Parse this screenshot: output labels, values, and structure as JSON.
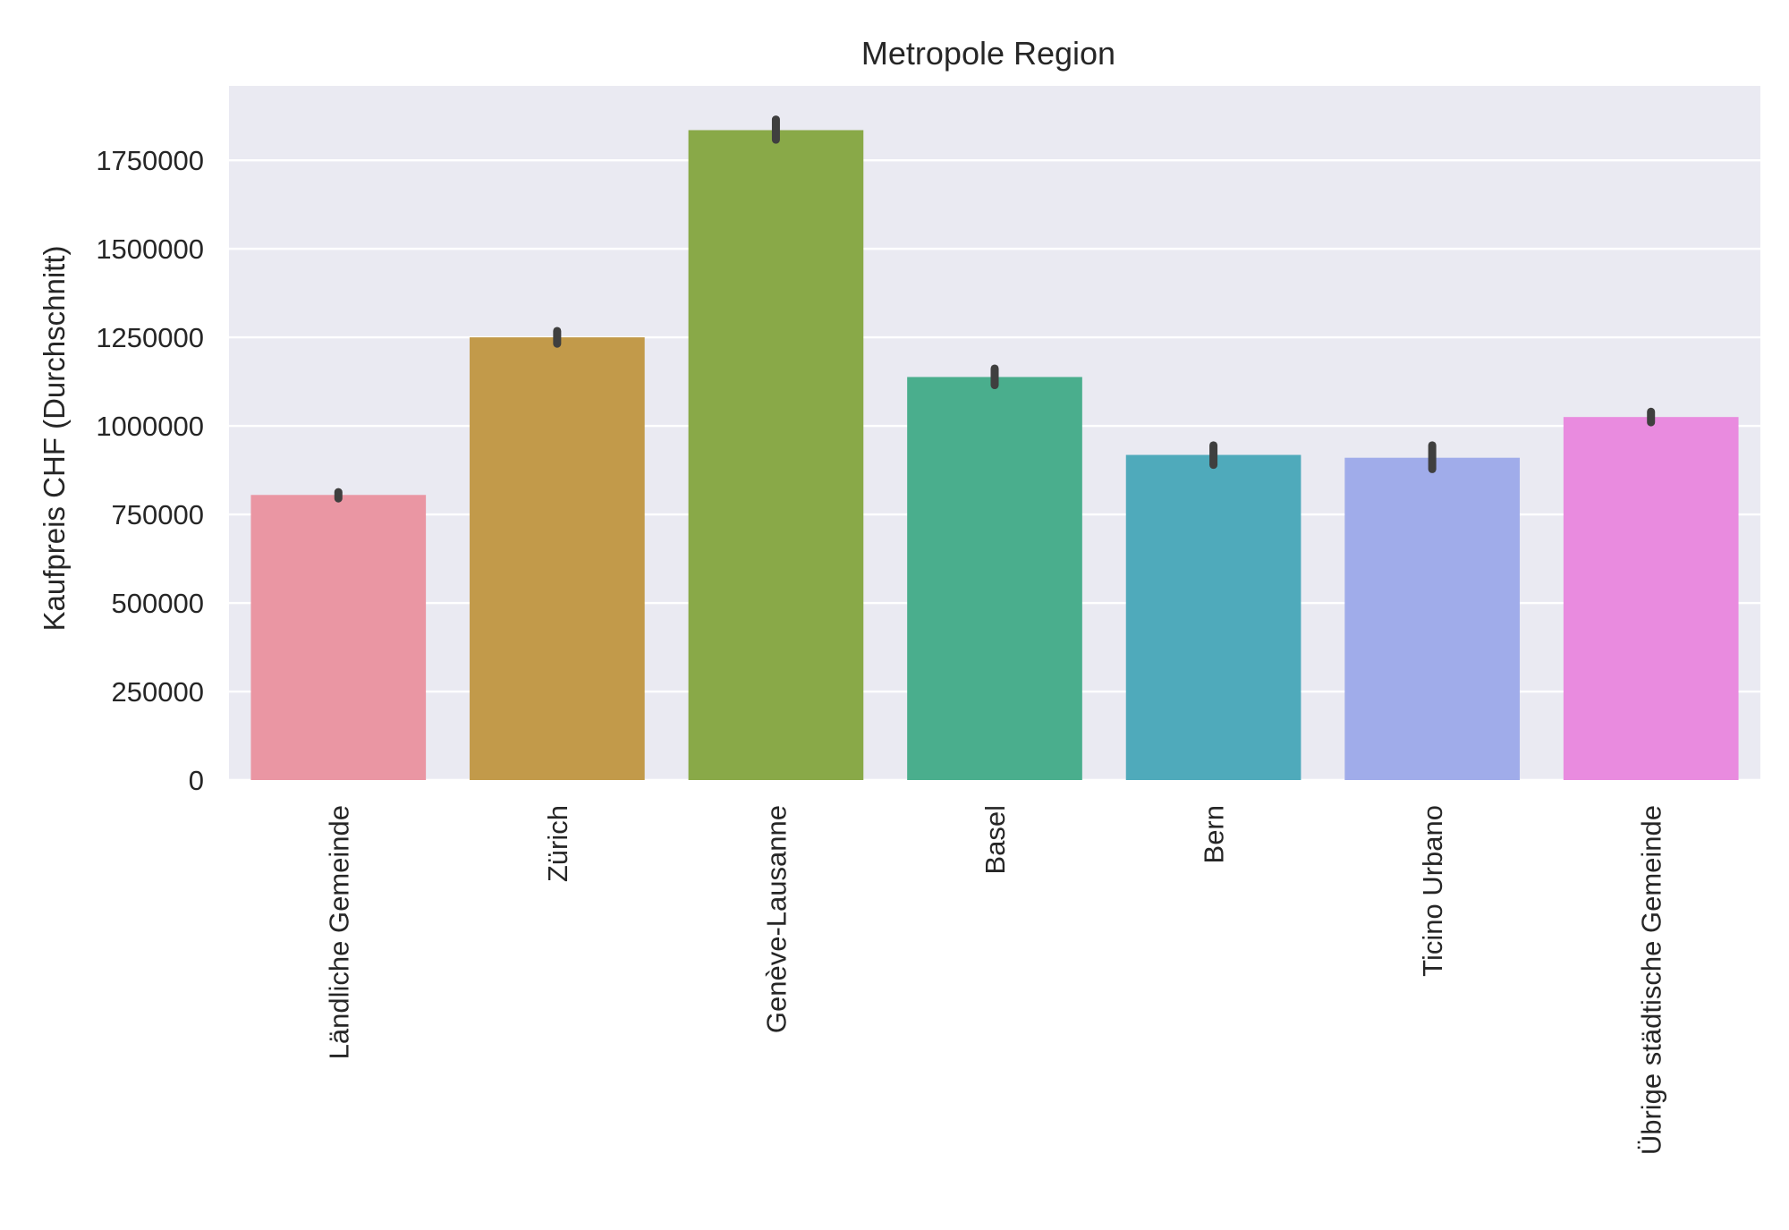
{
  "chart_data": {
    "type": "bar",
    "title": "Metropole Region",
    "xlabel": "",
    "ylabel": "Kaufpreis CHF (Durchschnitt)",
    "ylim": [
      0,
      1960000
    ],
    "yticks": [
      0,
      250000,
      500000,
      750000,
      1000000,
      1250000,
      1500000,
      1750000
    ],
    "ytick_labels": [
      "0",
      "250000",
      "500000",
      "750000",
      "1000000",
      "1250000",
      "1500000",
      "1750000"
    ],
    "grid": true,
    "categories": [
      "Ländliche Gemeinde",
      "Zürich",
      "Genève-Lausanne",
      "Basel",
      "Bern",
      "Ticino Urbano",
      "Übrige städtische Gemeinde"
    ],
    "values": [
      805000,
      1250000,
      1835000,
      1138000,
      918000,
      910000,
      1025000
    ],
    "error_low": [
      795000,
      1232000,
      1808000,
      1115000,
      890000,
      878000,
      1010000
    ],
    "error_high": [
      813000,
      1268000,
      1865000,
      1162000,
      945000,
      945000,
      1040000
    ],
    "colors": [
      "#ea96a3",
      "#c29a4a",
      "#89a948",
      "#4aae8d",
      "#4faabb",
      "#a0acea",
      "#e98bdf"
    ],
    "background_color": "#eaeaf2",
    "grid_color": "#ffffff",
    "errorbar_color": "#3f3f3f"
  }
}
